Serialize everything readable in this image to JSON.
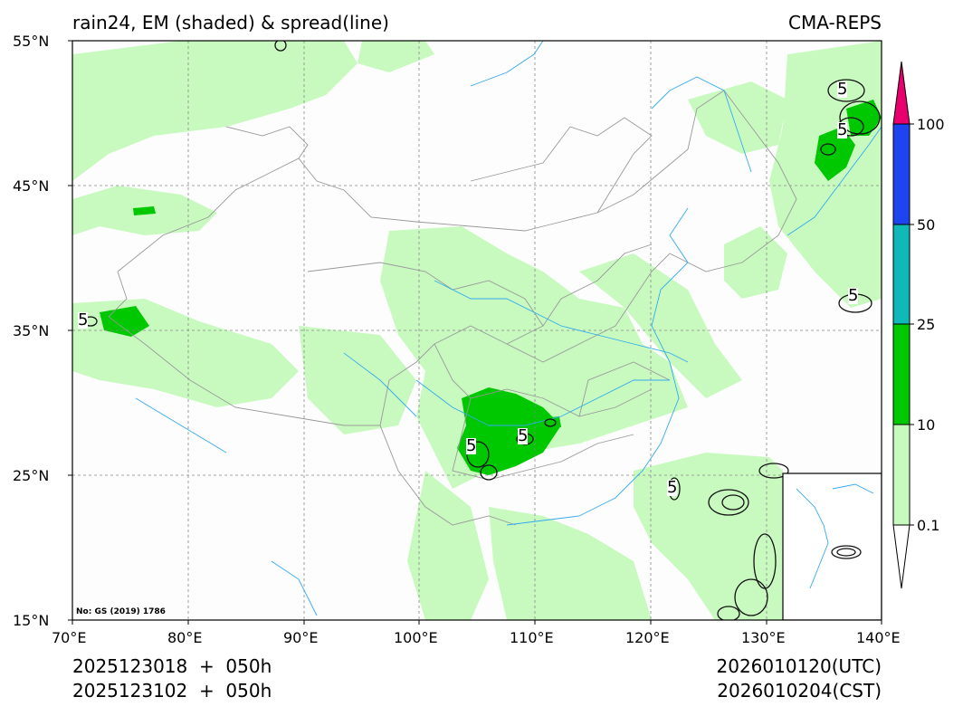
{
  "header": {
    "title": "rain24, EM (shaded) & spread(line)",
    "model": "CMA-REPS"
  },
  "axes": {
    "lat_labels": [
      "55°N",
      "45°N",
      "35°N",
      "25°N",
      "15°N"
    ],
    "lon_labels": [
      "70°E",
      "80°E",
      "90°E",
      "100°E",
      "110°E",
      "120°E",
      "130°E",
      "140°E"
    ]
  },
  "map_note": "No: GS (2019) 1786",
  "footer": {
    "init_utc": "2025123018  +  050h",
    "init_cst": "2025123102  +  050h",
    "valid_utc": "2026010120(UTC)",
    "valid_cst": "2026010204(CST)"
  },
  "colorbar": {
    "labels": [
      "0.1",
      "10",
      "25",
      "50",
      "100"
    ],
    "colors": {
      "under": "#ffffff",
      "b0": "#c8fac0",
      "b1": "#00c800",
      "b2": "#10b8b8",
      "b3": "#1e44f0",
      "over": "#e8006e"
    }
  },
  "map_colors": {
    "light_rain": "#c8fac0",
    "moderate_rain": "#00c800",
    "river": "#33aaee",
    "border": "#999999",
    "contour": "#111111",
    "grid": "#888888"
  },
  "spread_label": "5"
}
